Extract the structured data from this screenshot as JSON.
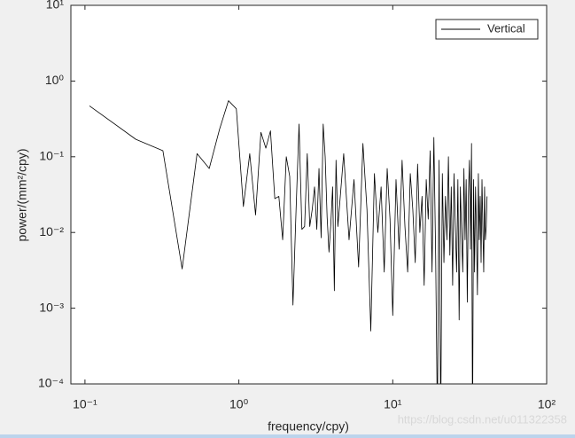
{
  "chart_data": {
    "type": "line",
    "xlabel": "frequency/cpy)",
    "ylabel": "power/(mm²/cpy)",
    "annotation": "https://blog.csdn.net/u011322358",
    "xscale": "log",
    "yscale": "log",
    "legend": "top-right",
    "xlim": [
      0.081,
      100
    ],
    "ylim": [
      0.0001,
      10
    ],
    "xticks": [
      {
        "value": 0.1,
        "label": "10⁻¹"
      },
      {
        "value": 1,
        "label": "10⁰"
      },
      {
        "value": 10,
        "label": "10¹"
      },
      {
        "value": 100,
        "label": "10²"
      }
    ],
    "yticks": [
      {
        "value": 0.0001,
        "label": "10⁻⁴"
      },
      {
        "value": 0.001,
        "label": "10⁻³"
      },
      {
        "value": 0.01,
        "label": "10⁻²"
      },
      {
        "value": 0.1,
        "label": "10⁻¹"
      },
      {
        "value": 1,
        "label": "10⁰"
      },
      {
        "value": 10,
        "label": "10¹"
      }
    ],
    "x": [
      0.107,
      0.214,
      0.321,
      0.428,
      0.535,
      0.642,
      0.749,
      0.856,
      0.963,
      1.07,
      1.177,
      1.284,
      1.391,
      1.498,
      1.605,
      1.712,
      1.819,
      1.926,
      2.033,
      2.14,
      2.247,
      2.354,
      2.461,
      2.568,
      2.675,
      2.782,
      2.889,
      2.996,
      3.103,
      3.21,
      3.317,
      3.424,
      3.531,
      3.638,
      3.745,
      3.852,
      3.959,
      4.066,
      4.173,
      4.28,
      4.4,
      4.8,
      5.2,
      5.6,
      6.0,
      6.4,
      6.8,
      7.2,
      7.6,
      8.0,
      8.4,
      8.8,
      9.2,
      9.6,
      10.0,
      10.5,
      11,
      11.5,
      12,
      12.5,
      13,
      13.5,
      14,
      14.5,
      15,
      15.5,
      16,
      16.5,
      17,
      17.5,
      18,
      18.5,
      19,
      19.5,
      20,
      20.5,
      21,
      21.5,
      22,
      22.5,
      23,
      23.5,
      24,
      24.5,
      25,
      25.5,
      26,
      26.5,
      27,
      27.5,
      28,
      28.5,
      29,
      29.5,
      30,
      30.5,
      31,
      31.5,
      32,
      32.5,
      33,
      33.5,
      34,
      34.5,
      35,
      35.5,
      36,
      36.5,
      37,
      37.5,
      38,
      38.5,
      39,
      39.5,
      40,
      40.5,
      41
    ],
    "series": [
      {
        "name": "Vertical",
        "color": "#000000",
        "values": [
          0.47,
          0.17,
          0.12,
          0.0033,
          0.11,
          0.07,
          0.23,
          0.55,
          0.43,
          0.022,
          0.11,
          0.017,
          0.21,
          0.13,
          0.22,
          0.028,
          0.03,
          0.008,
          0.1,
          0.055,
          0.0011,
          0.02,
          0.27,
          0.011,
          0.012,
          0.11,
          0.012,
          0.02,
          0.04,
          0.011,
          0.07,
          0.0085,
          0.27,
          0.1,
          0.016,
          0.0055,
          0.013,
          0.04,
          0.0017,
          0.09,
          0.012,
          0.11,
          0.008,
          0.05,
          0.0035,
          0.15,
          0.02,
          0.0005,
          0.06,
          0.01,
          0.04,
          0.003,
          0.07,
          0.015,
          0.0008,
          0.05,
          0.006,
          0.09,
          0.012,
          0.003,
          0.06,
          0.02,
          0.004,
          0.08,
          0.01,
          0.03,
          0.002,
          0.05,
          0.015,
          0.12,
          0.003,
          0.18,
          0.005,
          3e-05,
          0.09,
          3e-05,
          0.06,
          0.004,
          0.03,
          0.008,
          0.1,
          0.005,
          0.04,
          0.002,
          0.06,
          0.012,
          0.003,
          0.05,
          0.0007,
          0.04,
          0.01,
          0.003,
          0.07,
          0.008,
          0.05,
          0.0012,
          0.03,
          0.09,
          0.006,
          0.15,
          2e-05,
          0.05,
          0.003,
          0.04,
          0.01,
          0.0015,
          0.06,
          0.008,
          0.03,
          0.004,
          0.05,
          0.012,
          0.003,
          0.04,
          0.008,
          0.012,
          0.03
        ]
      }
    ]
  }
}
